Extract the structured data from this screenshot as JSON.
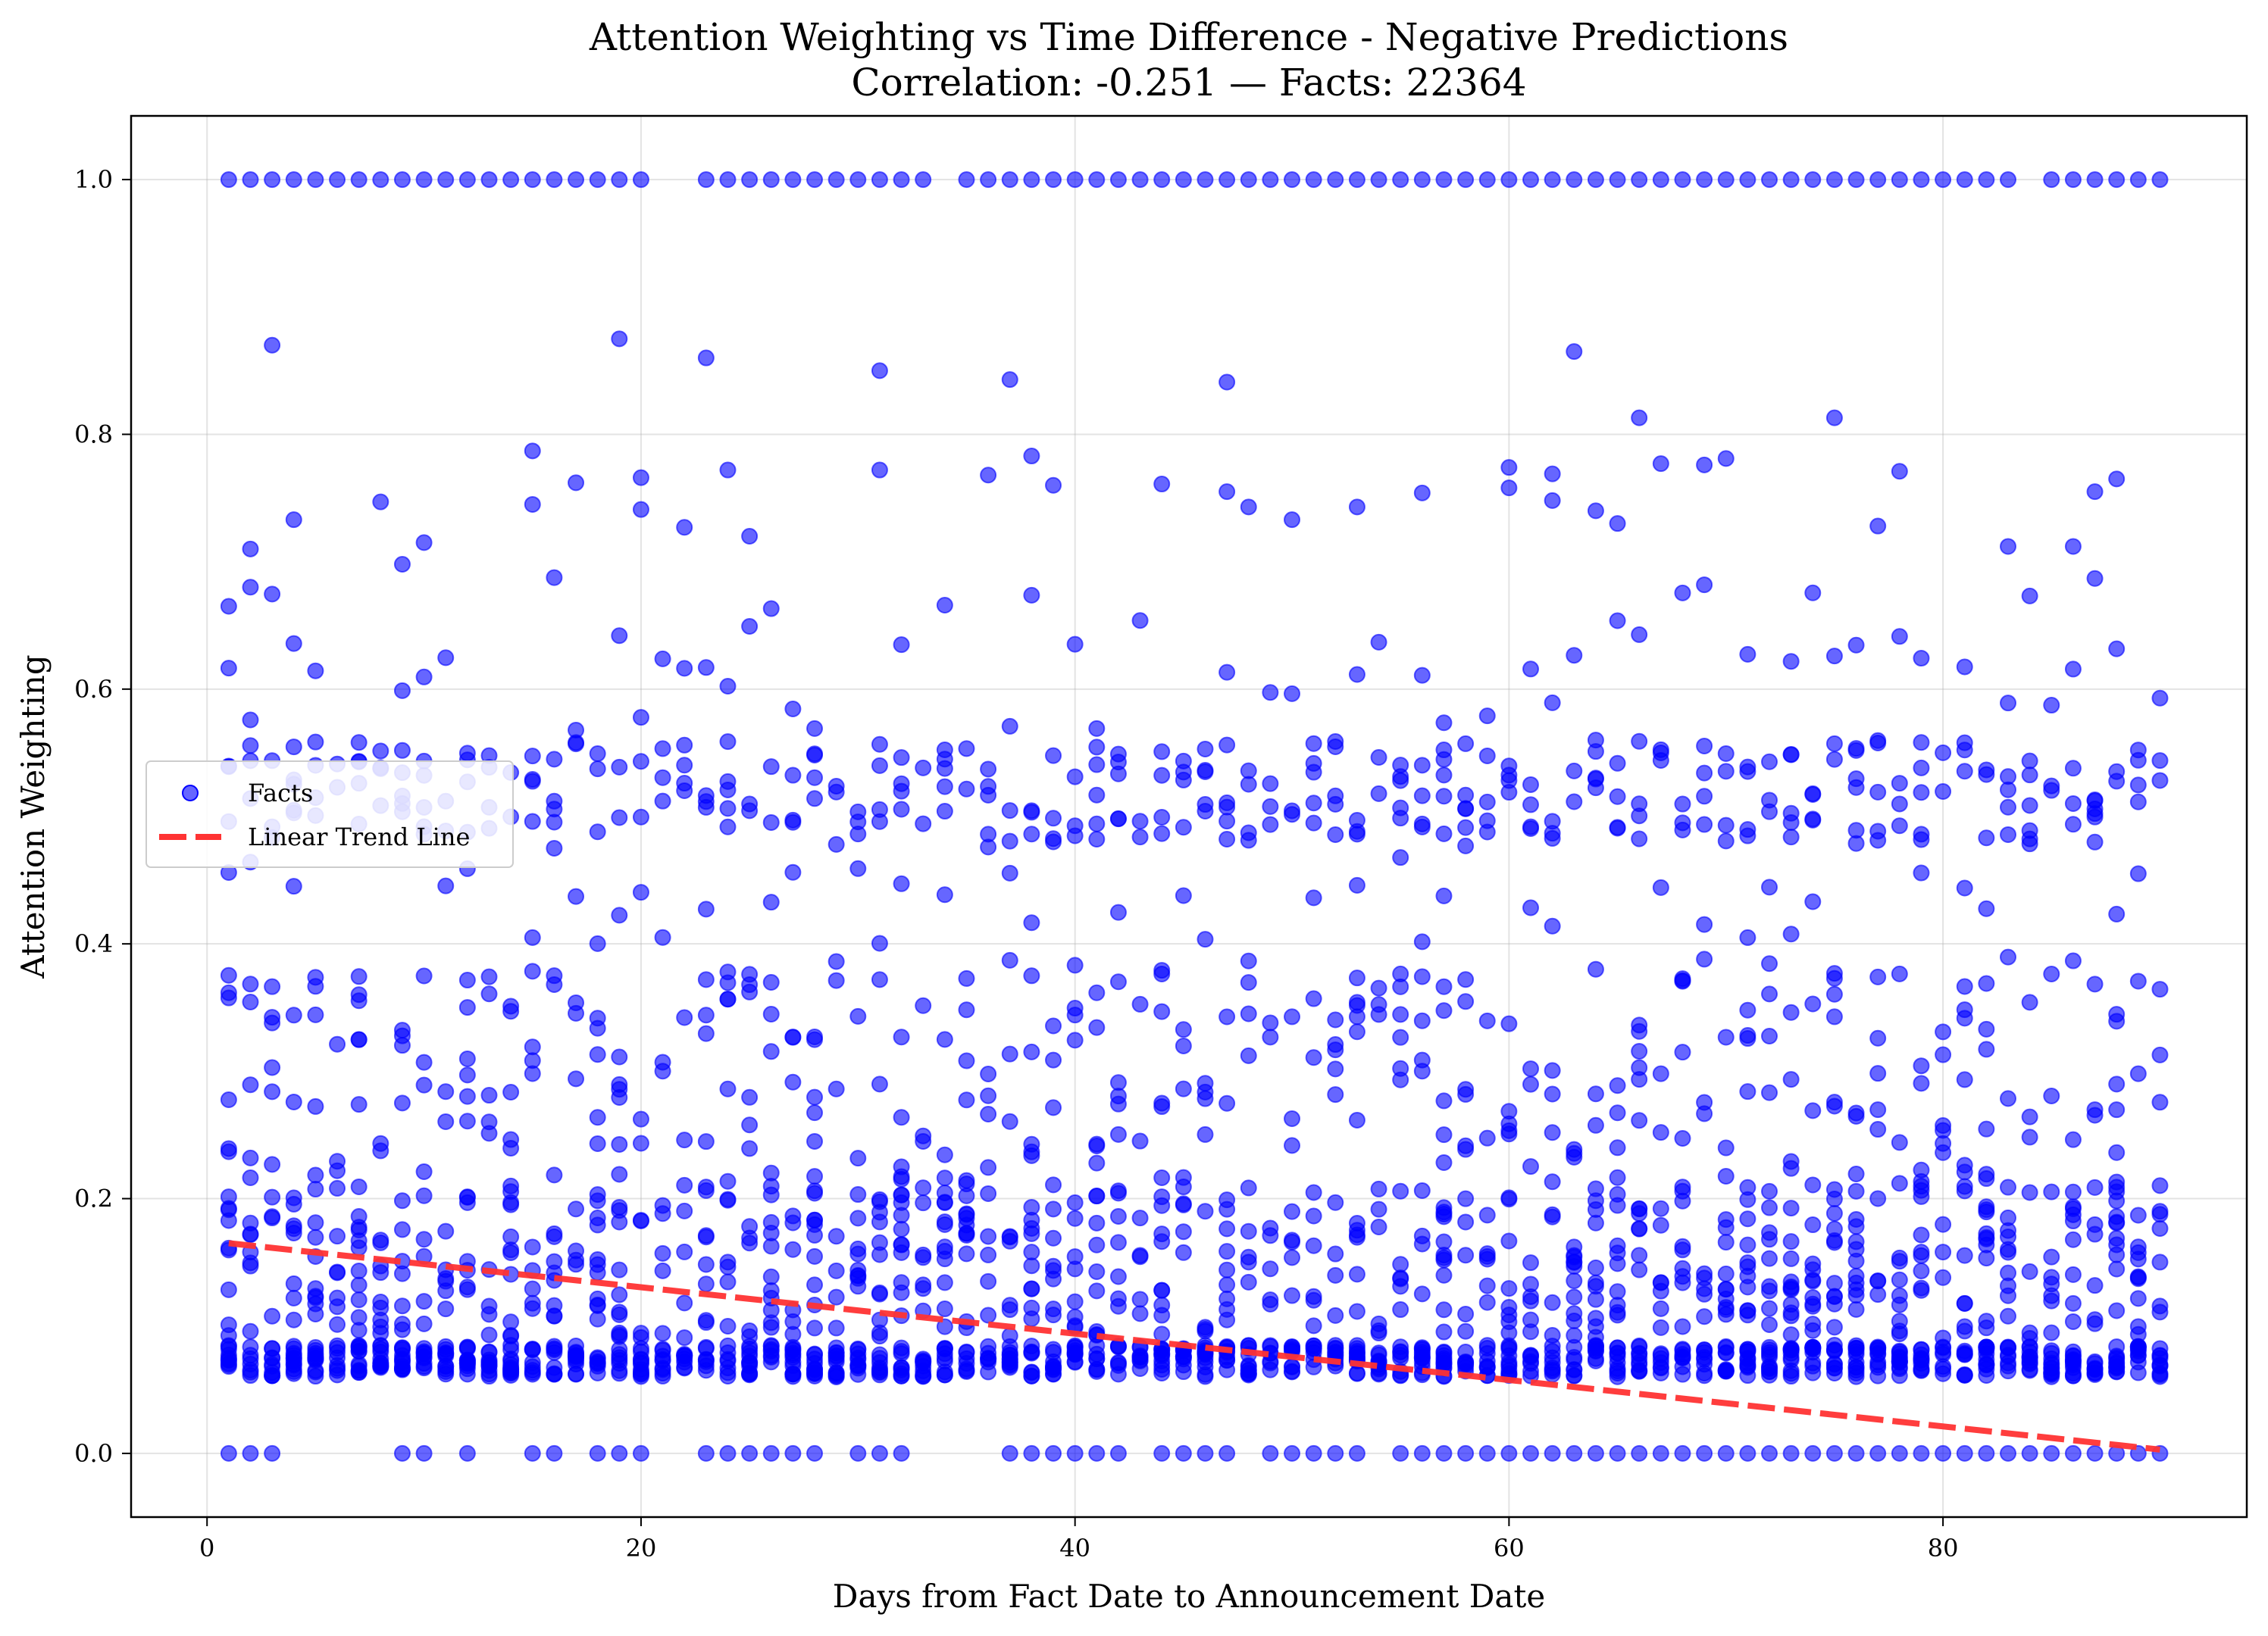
{
  "chart_data": {
    "type": "scatter",
    "title": "Attention Weighting vs Time Difference - Negative Predictions",
    "subtitle": "Correlation: -0.251 — Facts: 22364",
    "xlabel": "Days from Fact Date to Announcement Date",
    "ylabel": "Attention Weighting",
    "xlim": [
      -3.5,
      94
    ],
    "ylim": [
      -0.05,
      1.05
    ],
    "x_ticks": [
      {
        "value": 0,
        "label": "0"
      },
      {
        "value": 20,
        "label": "20"
      },
      {
        "value": 40,
        "label": "40"
      },
      {
        "value": 60,
        "label": "60"
      },
      {
        "value": 80,
        "label": "80"
      }
    ],
    "y_ticks": [
      {
        "value": 0.0,
        "label": "0.0"
      },
      {
        "value": 0.2,
        "label": "0.2"
      },
      {
        "value": 0.4,
        "label": "0.4"
      },
      {
        "value": 0.6,
        "label": "0.6"
      },
      {
        "value": 0.8,
        "label": "0.8"
      },
      {
        "value": 1.0,
        "label": "1.0"
      }
    ],
    "grid": true,
    "legend_position": "center-left",
    "legend": [
      "Facts",
      "Linear Trend Line"
    ],
    "point_color": "#0000ff",
    "trend_color": "#ff3333",
    "series": [
      {
        "name": "Facts",
        "kind": "scatter",
        "x_range_days": [
          1,
          90
        ],
        "y_at_1.0_days": [
          1,
          2,
          3,
          4,
          5,
          6,
          7,
          8,
          9,
          10,
          11,
          12,
          13,
          14,
          15,
          16,
          17,
          18,
          19,
          20,
          23,
          24,
          25,
          26,
          27,
          28,
          29,
          30,
          31,
          32,
          33,
          35,
          36,
          37,
          38,
          39,
          40,
          41,
          42,
          43,
          44,
          45,
          46,
          47,
          48,
          49,
          50,
          51,
          52,
          53,
          54,
          55,
          56,
          57,
          58,
          59,
          60,
          61,
          62,
          63,
          64,
          65,
          66,
          67,
          68,
          69,
          70,
          71,
          72,
          73,
          74,
          75,
          76,
          77,
          78,
          79,
          80,
          81,
          82,
          83,
          85,
          86,
          87,
          88,
          89,
          90
        ],
        "y_at_0.0_days": [
          1,
          2,
          3,
          9,
          10,
          12,
          15,
          16,
          18,
          19,
          20,
          23,
          24,
          25,
          26,
          27,
          28,
          30,
          31,
          32,
          37,
          38,
          39,
          40,
          41,
          42,
          44,
          45,
          46,
          47,
          49,
          50,
          51,
          52,
          53,
          55,
          56,
          57,
          58,
          59,
          60,
          61,
          62,
          63,
          64,
          65,
          66,
          67,
          68,
          69,
          70,
          71,
          72,
          73,
          74,
          75,
          76,
          77,
          78,
          79,
          80,
          81,
          82,
          83,
          84,
          85,
          86,
          87,
          88,
          89,
          90
        ],
        "mid_points": [
          {
            "x": 1,
            "y": 0.665
          },
          {
            "x": 2,
            "y": 0.71
          },
          {
            "x": 2,
            "y": 0.68
          },
          {
            "x": 3,
            "y": 0.87
          },
          {
            "x": 4,
            "y": 0.733
          },
          {
            "x": 8,
            "y": 0.747
          },
          {
            "x": 9,
            "y": 0.698
          },
          {
            "x": 10,
            "y": 0.715
          },
          {
            "x": 15,
            "y": 0.787
          },
          {
            "x": 15,
            "y": 0.745
          },
          {
            "x": 17,
            "y": 0.762
          },
          {
            "x": 19,
            "y": 0.875
          },
          {
            "x": 20,
            "y": 0.766
          },
          {
            "x": 20,
            "y": 0.741
          },
          {
            "x": 22,
            "y": 0.727
          },
          {
            "x": 23,
            "y": 0.86
          },
          {
            "x": 24,
            "y": 0.772
          },
          {
            "x": 25,
            "y": 0.72
          },
          {
            "x": 31,
            "y": 0.85
          },
          {
            "x": 31,
            "y": 0.772
          },
          {
            "x": 36,
            "y": 0.768
          },
          {
            "x": 37,
            "y": 0.843
          },
          {
            "x": 38,
            "y": 0.783
          },
          {
            "x": 39,
            "y": 0.76
          },
          {
            "x": 44,
            "y": 0.761
          },
          {
            "x": 47,
            "y": 0.841
          },
          {
            "x": 47,
            "y": 0.755
          },
          {
            "x": 48,
            "y": 0.743
          },
          {
            "x": 50,
            "y": 0.733
          },
          {
            "x": 53,
            "y": 0.743
          },
          {
            "x": 56,
            "y": 0.754
          },
          {
            "x": 60,
            "y": 0.774
          },
          {
            "x": 60,
            "y": 0.758
          },
          {
            "x": 62,
            "y": 0.769
          },
          {
            "x": 62,
            "y": 0.748
          },
          {
            "x": 63,
            "y": 0.865
          },
          {
            "x": 64,
            "y": 0.74
          },
          {
            "x": 65,
            "y": 0.73
          },
          {
            "x": 66,
            "y": 0.813
          },
          {
            "x": 67,
            "y": 0.777
          },
          {
            "x": 69,
            "y": 0.776
          },
          {
            "x": 70,
            "y": 0.781
          },
          {
            "x": 75,
            "y": 0.813
          },
          {
            "x": 77,
            "y": 0.728
          },
          {
            "x": 78,
            "y": 0.771
          },
          {
            "x": 83,
            "y": 0.712
          },
          {
            "x": 86,
            "y": 0.712
          },
          {
            "x": 87,
            "y": 0.755
          },
          {
            "x": 88,
            "y": 0.765
          }
        ]
      },
      {
        "name": "Linear Trend Line",
        "kind": "line",
        "style": "dashed",
        "x": [
          1,
          90
        ],
        "y": [
          0.165,
          0.003
        ]
      }
    ]
  }
}
